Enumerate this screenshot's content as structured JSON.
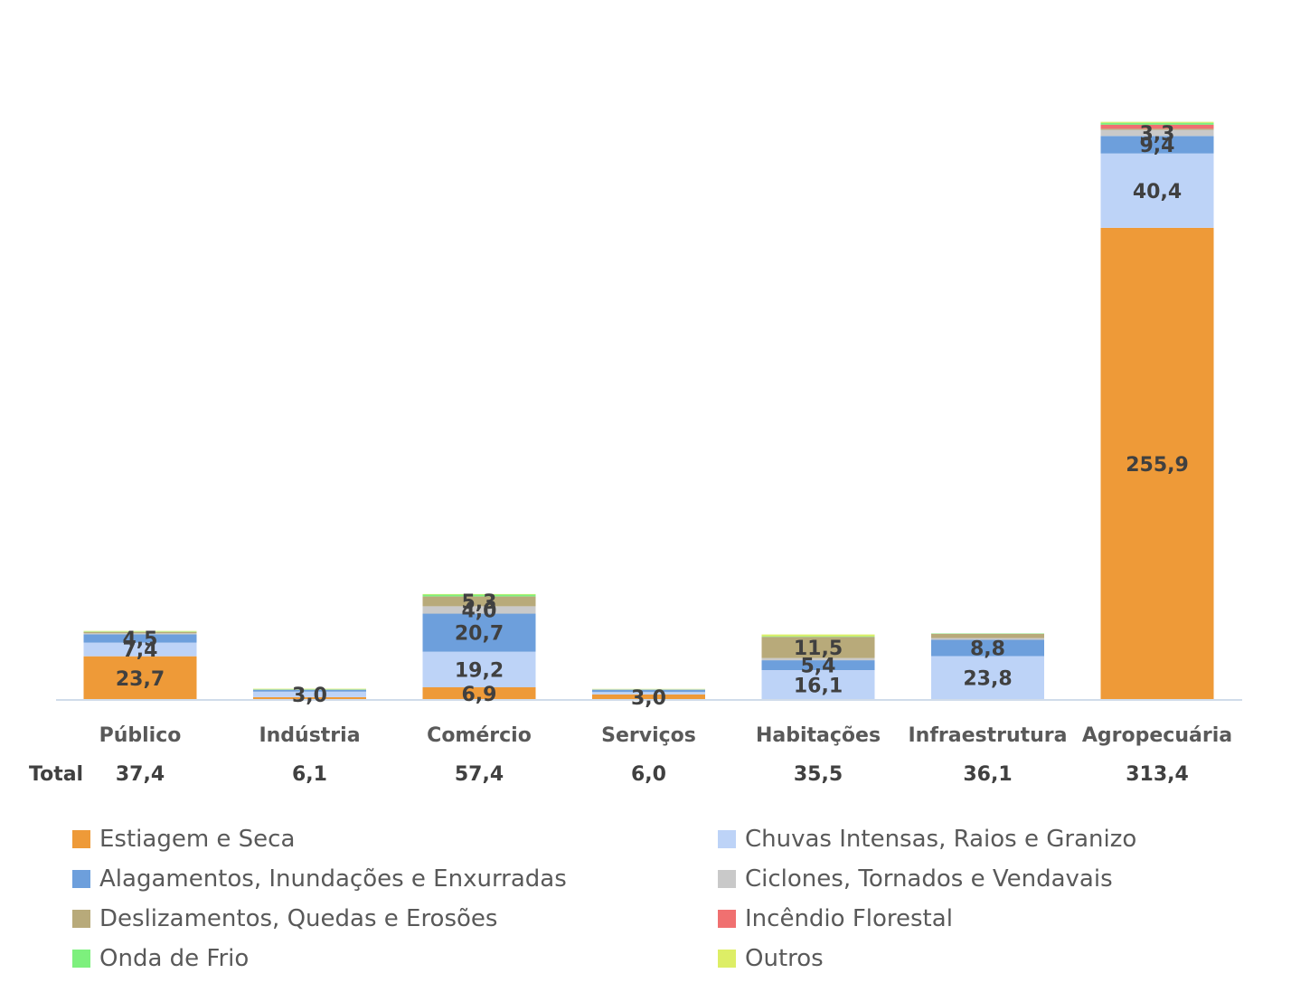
{
  "chart_data": {
    "type": "bar",
    "stacked": true,
    "title": "",
    "xlabel": "",
    "ylabel": "",
    "ylim": [
      0,
      320
    ],
    "grid": false,
    "legend_position": "bottom",
    "categories": [
      "Público",
      "Indústria",
      "Comércio",
      "Serviços",
      "Habitações",
      "Infraestrutura",
      "Agropecuária"
    ],
    "total_label": "Total",
    "totals": [
      "37,4",
      "6,1",
      "57,4",
      "6,0",
      "35,5",
      "36,1",
      "313,4"
    ],
    "series": [
      {
        "name": "Estiagem e Seca",
        "color": "#EE9A38",
        "values": [
          23.7,
          1.5,
          6.9,
          3.0,
          0.0,
          0.0,
          255.9
        ]
      },
      {
        "name": "Chuvas Intensas, Raios e Granizo",
        "color": "#BDD3F7",
        "values": [
          7.4,
          3.0,
          19.2,
          1.3,
          16.1,
          23.8,
          40.4
        ]
      },
      {
        "name": "Alagamentos, Inundações e Enxurradas",
        "color": "#6D9FDC",
        "values": [
          4.5,
          0.9,
          20.7,
          1.2,
          5.4,
          8.8,
          9.4
        ]
      },
      {
        "name": "Ciclones, Tornados e Vendavais",
        "color": "#C9C9C9",
        "values": [
          0.5,
          0.2,
          4.0,
          0.2,
          1.2,
          1.0,
          3.3
        ]
      },
      {
        "name": "Deslizamentos, Quedas e Erosões",
        "color": "#B8AA7A",
        "values": [
          0.8,
          0.1,
          5.3,
          0.1,
          11.5,
          2.3,
          0.6
        ]
      },
      {
        "name": "Incêndio Florestal",
        "color": "#F07070",
        "values": [
          0.0,
          0.0,
          0.0,
          0.0,
          0.0,
          0.0,
          2.2
        ]
      },
      {
        "name": "Onda de Frio",
        "color": "#7DF07D",
        "values": [
          0.2,
          0.2,
          1.0,
          0.1,
          0.3,
          0.2,
          1.1
        ]
      },
      {
        "name": "Outros",
        "color": "#DDEE66",
        "values": [
          0.3,
          0.2,
          0.3,
          0.1,
          1.0,
          0.0,
          0.5
        ]
      }
    ],
    "data_labels": [
      {
        "category": "Público",
        "series": "Estiagem e Seca",
        "text": "23,7"
      },
      {
        "category": "Público",
        "series": "Chuvas Intensas, Raios e Granizo",
        "text": "7,4"
      },
      {
        "category": "Público",
        "series": "Alagamentos, Inundações e Enxurradas",
        "text": "4,5"
      },
      {
        "category": "Indústria",
        "series": "Chuvas Intensas, Raios e Granizo",
        "text": "3,0"
      },
      {
        "category": "Comércio",
        "series": "Estiagem e Seca",
        "text": "6,9"
      },
      {
        "category": "Comércio",
        "series": "Chuvas Intensas, Raios e Granizo",
        "text": "19,2"
      },
      {
        "category": "Comércio",
        "series": "Alagamentos, Inundações e Enxurradas",
        "text": "20,7"
      },
      {
        "category": "Comércio",
        "series": "Ciclones, Tornados e Vendavais",
        "text": "4,0"
      },
      {
        "category": "Comércio",
        "series": "Deslizamentos, Quedas e Erosões",
        "text": "5,3"
      },
      {
        "category": "Serviços",
        "series": "Estiagem e Seca",
        "text": "3,0"
      },
      {
        "category": "Habitações",
        "series": "Chuvas Intensas, Raios e Granizo",
        "text": "16,1"
      },
      {
        "category": "Habitações",
        "series": "Alagamentos, Inundações e Enxurradas",
        "text": "5,4"
      },
      {
        "category": "Habitações",
        "series": "Deslizamentos, Quedas e Erosões",
        "text": "11,5"
      },
      {
        "category": "Infraestrutura",
        "series": "Chuvas Intensas, Raios e Granizo",
        "text": "23,8"
      },
      {
        "category": "Infraestrutura",
        "series": "Alagamentos, Inundações e Enxurradas",
        "text": "8,8"
      },
      {
        "category": "Agropecuária",
        "series": "Estiagem e Seca",
        "text": "255,9"
      },
      {
        "category": "Agropecuária",
        "series": "Chuvas Intensas, Raios e Granizo",
        "text": "40,4"
      },
      {
        "category": "Agropecuária",
        "series": "Alagamentos, Inundações e Enxurradas",
        "text": "9,4"
      },
      {
        "category": "Agropecuária",
        "series": "Ciclones, Tornados e Vendavais",
        "text": "3,3"
      }
    ]
  }
}
